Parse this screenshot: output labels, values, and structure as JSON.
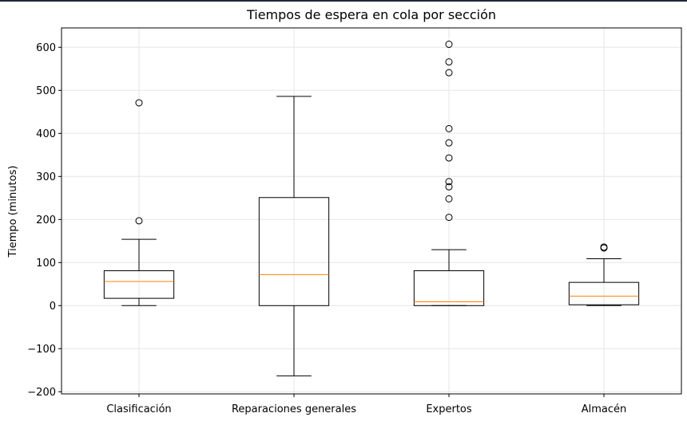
{
  "chart_data": {
    "type": "boxplot",
    "title": "Tiempos de espera en cola por sección",
    "xlabel": "",
    "ylabel": "Tiempo (minutos)",
    "ylim": [
      -205,
      645
    ],
    "yticks": [
      -200,
      -100,
      0,
      100,
      200,
      300,
      400,
      500,
      600
    ],
    "ytick_labels": [
      "−200",
      "−100",
      "0",
      "100",
      "200",
      "300",
      "400",
      "500",
      "600"
    ],
    "grid": true,
    "categories": [
      "Clasificación",
      "Reparaciones generales",
      "Expertos",
      "Almacén"
    ],
    "boxes": [
      {
        "whisker_low": 0,
        "q1": 17,
        "median": 56,
        "q3": 81,
        "whisker_high": 154,
        "outliers": [
          197,
          471
        ]
      },
      {
        "whisker_low": -163,
        "q1": 0,
        "median": 72,
        "q3": 251,
        "whisker_high": 486,
        "outliers": []
      },
      {
        "whisker_low": 0,
        "q1": 0,
        "median": 9,
        "q3": 81,
        "whisker_high": 130,
        "outliers": [
          205,
          248,
          276,
          288,
          343,
          378,
          411,
          541,
          566,
          607
        ]
      },
      {
        "whisker_low": 0,
        "q1": 2,
        "median": 22,
        "q3": 54,
        "whisker_high": 109,
        "outliers": [
          134,
          136
        ]
      }
    ],
    "colors": {
      "box": "#000000",
      "median": "#ff7f0e",
      "grid": "#e6e6e6"
    }
  }
}
